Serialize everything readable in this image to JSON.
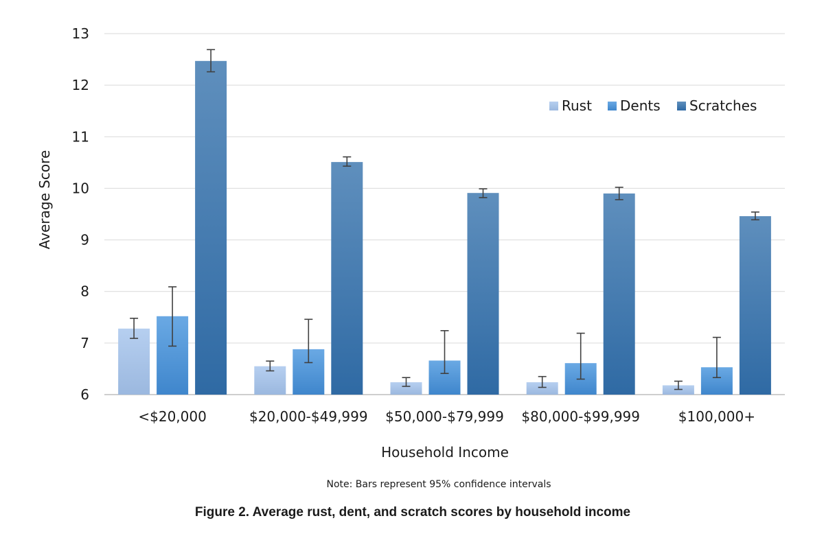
{
  "chart_data": {
    "type": "bar",
    "title": "",
    "xlabel": "Household Income",
    "ylabel": "Average Score",
    "ylim": [
      6,
      13
    ],
    "yticks": [
      6,
      7,
      8,
      9,
      10,
      11,
      12,
      13
    ],
    "grid": "horizontal",
    "legend_position": "top-right",
    "categories": [
      "<$20,000",
      "$20,000-$49,999",
      "$50,000-$79,999",
      "$80,000-$99,999",
      "$100,000+"
    ],
    "series": [
      {
        "name": "Rust",
        "color": "#a9c4e6",
        "values": [
          7.28,
          6.55,
          6.24,
          6.24,
          6.18
        ],
        "ci_low": [
          7.09,
          6.46,
          6.16,
          6.14,
          6.1
        ],
        "ci_high": [
          7.48,
          6.65,
          6.33,
          6.35,
          6.26
        ]
      },
      {
        "name": "Dents",
        "color": "#5b9bd5",
        "values": [
          7.52,
          6.88,
          6.66,
          6.61,
          6.53
        ],
        "ci_low": [
          6.94,
          6.62,
          6.41,
          6.3,
          6.33
        ],
        "ci_high": [
          8.09,
          7.46,
          7.24,
          7.19,
          7.11
        ]
      },
      {
        "name": "Scratches",
        "color": "#3e73a8",
        "values": [
          12.47,
          10.51,
          9.91,
          9.9,
          9.46
        ],
        "ci_low": [
          12.26,
          10.43,
          9.82,
          9.78,
          9.39
        ],
        "ci_high": [
          12.69,
          10.61,
          9.99,
          10.02,
          9.54
        ]
      }
    ],
    "note": "Note: Bars represent 95% confidence intervals",
    "caption": "Figure 2. Average rust, dent, and scratch scores by household income"
  }
}
